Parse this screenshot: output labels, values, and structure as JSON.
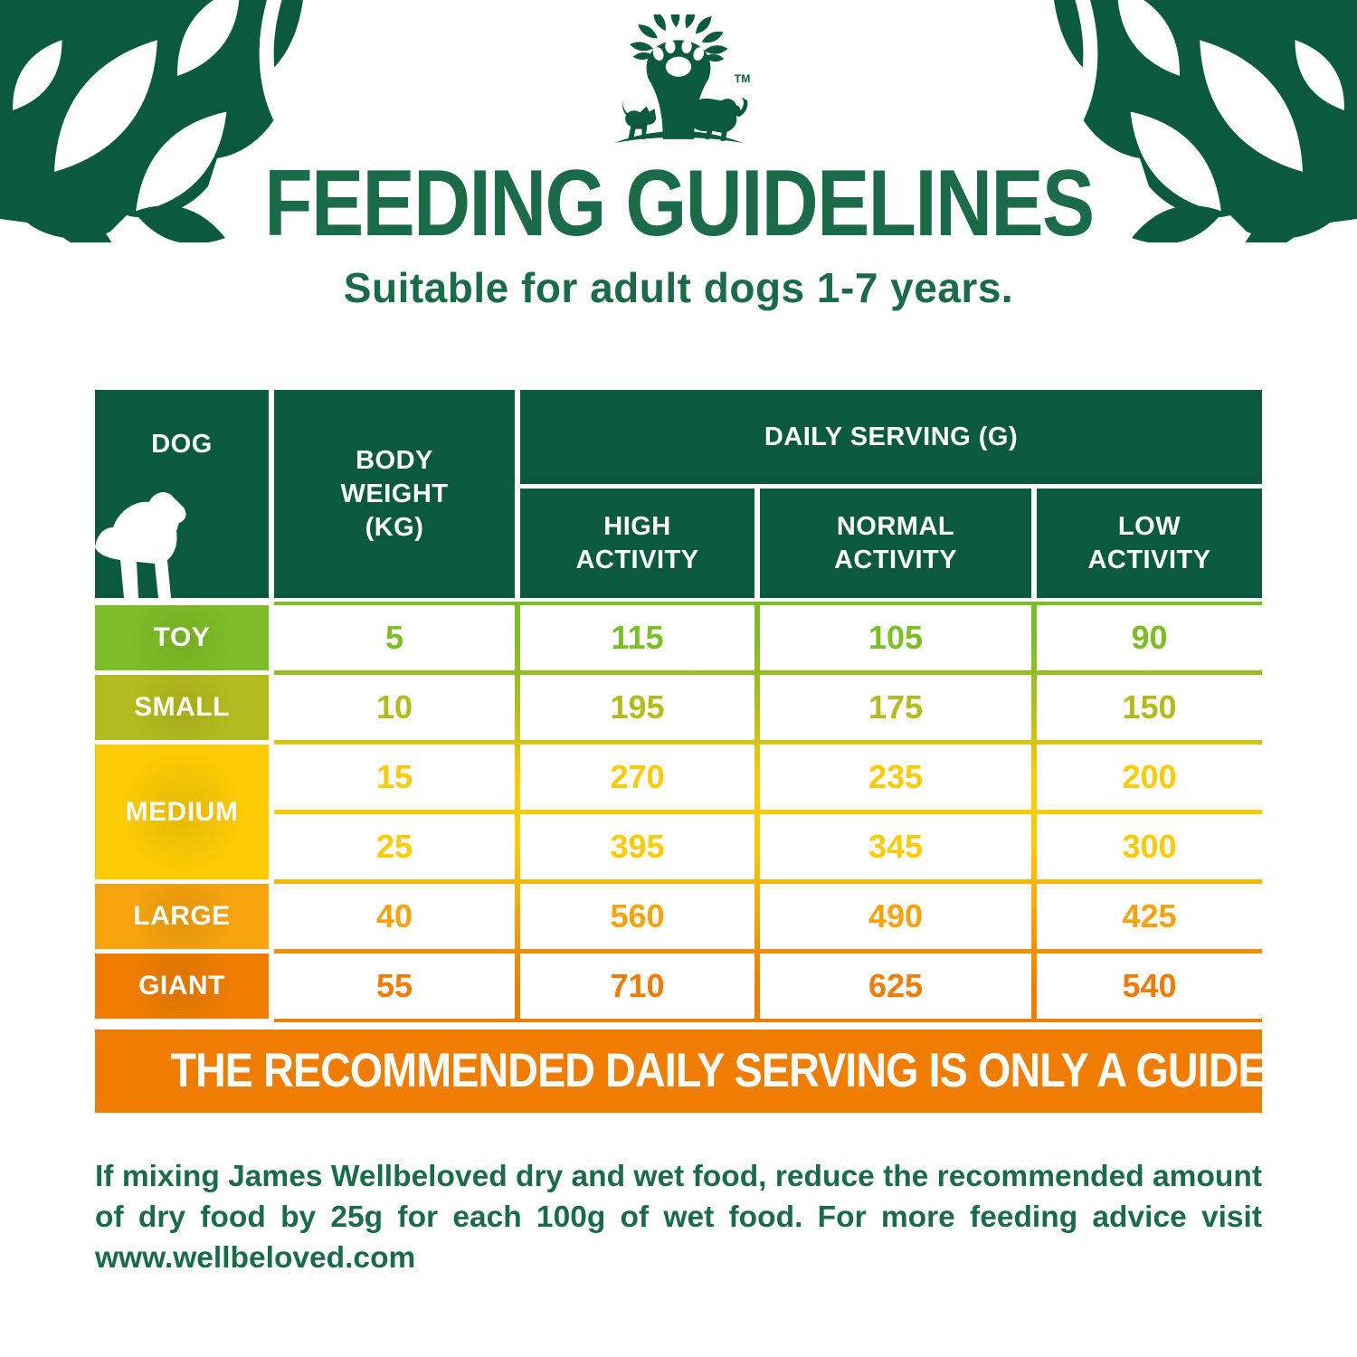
{
  "page": {
    "title": "FEEDING GUIDELINES",
    "subtitle": "Suitable for adult dogs 1-7 years.",
    "trademark": "TM"
  },
  "icons": {
    "logo": "tree-with-paw-print-cat-and-dog",
    "header_dog": "puppy-silhouette",
    "corner_decoration": "leaf-branch-decoration"
  },
  "colors": {
    "brand_green": "#0b5a3f",
    "text_green": "#1b6b4b",
    "toy": "#7cbd28",
    "small": "#b3bc1e",
    "medium": "#fbcb04",
    "large": "#f6a30d",
    "giant": "#ee7d01",
    "banner_orange": "#ee7d01"
  },
  "table": {
    "headers": {
      "dog": "DOG",
      "body_weight": "BODY WEIGHT (KG)",
      "daily_serving": "DAILY SERVING (G)",
      "activity_levels": [
        "HIGH ACTIVITY",
        "NORMAL ACTIVITY",
        "LOW ACTIVITY"
      ]
    },
    "rows": [
      {
        "label": "TOY",
        "color_key": "toy",
        "entries": [
          {
            "weight": "5",
            "high": "115",
            "normal": "105",
            "low": "90"
          }
        ]
      },
      {
        "label": "SMALL",
        "color_key": "small",
        "entries": [
          {
            "weight": "10",
            "high": "195",
            "normal": "175",
            "low": "150"
          }
        ]
      },
      {
        "label": "MEDIUM",
        "color_key": "medium",
        "entries": [
          {
            "weight": "15",
            "high": "270",
            "normal": "235",
            "low": "200"
          },
          {
            "weight": "25",
            "high": "395",
            "normal": "345",
            "low": "300"
          }
        ]
      },
      {
        "label": "LARGE",
        "color_key": "large",
        "entries": [
          {
            "weight": "40",
            "high": "560",
            "normal": "490",
            "low": "425"
          }
        ]
      },
      {
        "label": "GIANT",
        "color_key": "giant",
        "entries": [
          {
            "weight": "55",
            "high": "710",
            "normal": "625",
            "low": "540"
          }
        ]
      }
    ]
  },
  "banner": {
    "text": "THE RECOMMENDED DAILY SERVING IS ONLY A GUIDE."
  },
  "footer": {
    "lines": [
      "If mixing James Wellbeloved dry and wet food, reduce the recommended amount",
      "of dry food by 25g for each 100g of wet food. For more feeding advice visit",
      "www.wellbeloved.com"
    ]
  },
  "chart_data": {
    "type": "table",
    "title": "FEEDING GUIDELINES",
    "subtitle": "Suitable for adult dogs 1-7 years.",
    "columns": [
      "DOG",
      "BODY WEIGHT (KG)",
      "DAILY SERVING (G) HIGH ACTIVITY",
      "DAILY SERVING (G) NORMAL ACTIVITY",
      "DAILY SERVING (G) LOW ACTIVITY"
    ],
    "rows": [
      [
        "TOY",
        5,
        115,
        105,
        90
      ],
      [
        "SMALL",
        10,
        195,
        175,
        150
      ],
      [
        "MEDIUM",
        15,
        270,
        235,
        200
      ],
      [
        "MEDIUM",
        25,
        395,
        345,
        300
      ],
      [
        "LARGE",
        40,
        560,
        490,
        425
      ],
      [
        "GIANT",
        55,
        710,
        625,
        540
      ]
    ],
    "note": "THE RECOMMENDED DAILY SERVING IS ONLY A GUIDE."
  }
}
